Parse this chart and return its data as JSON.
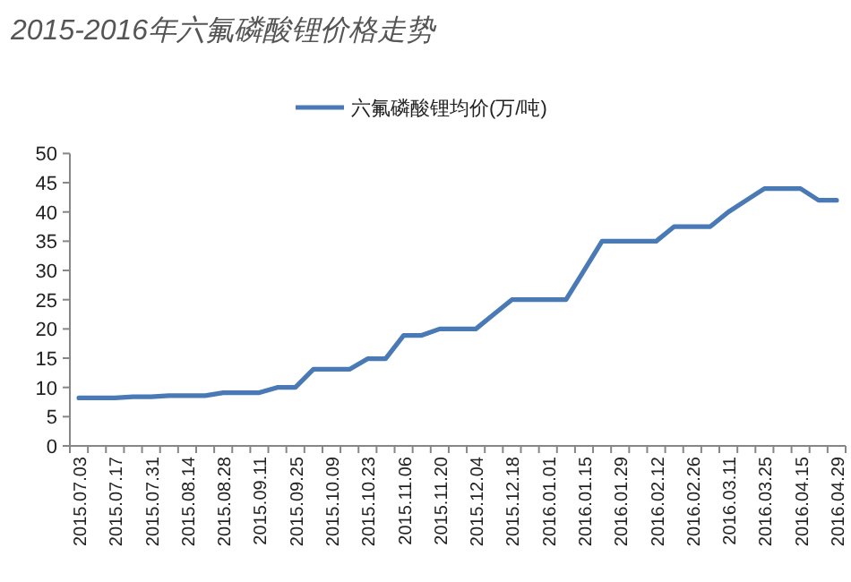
{
  "chart_data": {
    "type": "line",
    "title": "2015-2016年六氟磷酸锂价格走势",
    "categories": [
      "2015.07.03",
      null,
      "2015.07.17",
      null,
      "2015.07.31",
      null,
      "2015.08.14",
      null,
      "2015.08.28",
      null,
      "2015.09.11",
      null,
      "2015.09.25",
      null,
      "2015.10.09",
      null,
      "2015.10.23",
      null,
      "2015.11.06",
      null,
      "2015.11.20",
      null,
      "2015.12.04",
      null,
      "2015.12.18",
      null,
      "2016.01.01",
      null,
      "2016.01.15",
      null,
      "2016.01.29",
      null,
      "2016.02.12",
      null,
      "2016.02.26",
      null,
      "2016.03.11",
      null,
      "2016.03.25",
      null,
      "2016.04.15",
      null,
      "2016.04.29"
    ],
    "series": [
      {
        "name": "六氟磷酸锂均价(万/吨)",
        "color": "#4a7ab5",
        "values": [
          8.2,
          8.2,
          8.2,
          8.4,
          8.4,
          8.6,
          8.6,
          8.6,
          9.1,
          9.1,
          9.1,
          10,
          10,
          13.1,
          13.1,
          13.1,
          14.9,
          14.9,
          18.9,
          18.9,
          20,
          20,
          20,
          22.5,
          25,
          25,
          25,
          25,
          30,
          35,
          35,
          35,
          35,
          37.5,
          37.5,
          37.5,
          40,
          42,
          44,
          44,
          44,
          42,
          42
        ]
      }
    ],
    "ylim": [
      0,
      50
    ],
    "yticks": [
      0,
      5,
      10,
      15,
      20,
      25,
      30,
      35,
      40,
      45,
      50
    ],
    "grid": false,
    "legend": "top",
    "marker": "none",
    "line_style": "solid"
  }
}
